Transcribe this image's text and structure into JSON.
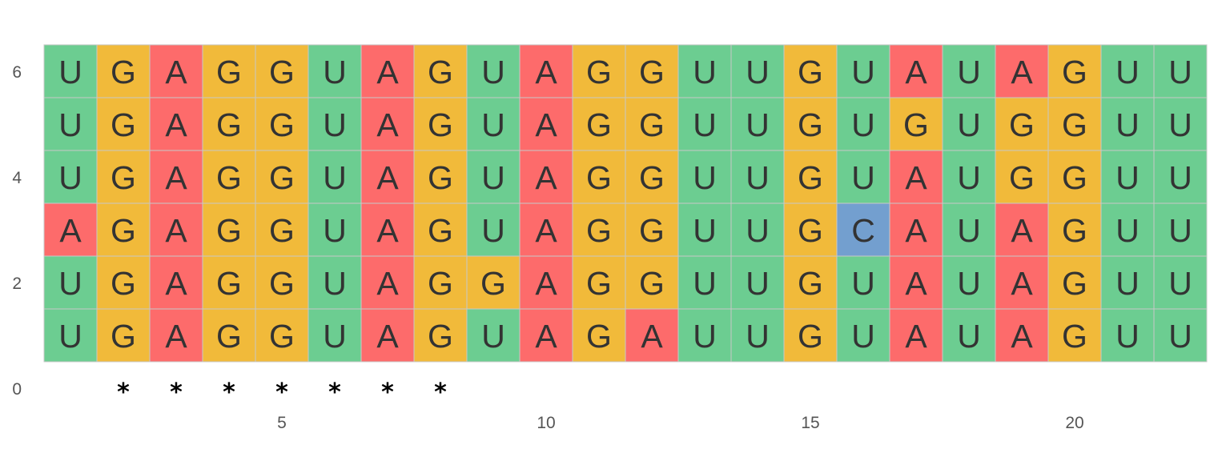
{
  "chart_data": {
    "type": "heatmap",
    "title": "",
    "xlabel": "",
    "ylabel": "",
    "xlim": [
      0.5,
      22.5
    ],
    "ylim": [
      0,
      6.5
    ],
    "x_ticks": [
      5,
      10,
      15,
      20
    ],
    "y_ticks": [
      0,
      2,
      4,
      6
    ],
    "grid": false,
    "rows": [
      {
        "y": 6,
        "sequence": [
          "U",
          "G",
          "A",
          "G",
          "G",
          "U",
          "A",
          "G",
          "U",
          "A",
          "G",
          "G",
          "U",
          "U",
          "G",
          "U",
          "A",
          "U",
          "A",
          "G",
          "U",
          "U"
        ]
      },
      {
        "y": 5,
        "sequence": [
          "U",
          "G",
          "A",
          "G",
          "G",
          "U",
          "A",
          "G",
          "U",
          "A",
          "G",
          "G",
          "U",
          "U",
          "G",
          "U",
          "G",
          "U",
          "G",
          "G",
          "U",
          "U"
        ]
      },
      {
        "y": 4,
        "sequence": [
          "U",
          "G",
          "A",
          "G",
          "G",
          "U",
          "A",
          "G",
          "U",
          "A",
          "G",
          "G",
          "U",
          "U",
          "G",
          "U",
          "A",
          "U",
          "G",
          "G",
          "U",
          "U"
        ]
      },
      {
        "y": 3,
        "sequence": [
          "A",
          "G",
          "A",
          "G",
          "G",
          "U",
          "A",
          "G",
          "U",
          "A",
          "G",
          "G",
          "U",
          "U",
          "G",
          "C",
          "A",
          "U",
          "A",
          "G",
          "U",
          "U"
        ]
      },
      {
        "y": 2,
        "sequence": [
          "U",
          "G",
          "A",
          "G",
          "G",
          "U",
          "A",
          "G",
          "G",
          "A",
          "G",
          "G",
          "U",
          "U",
          "G",
          "U",
          "A",
          "U",
          "A",
          "G",
          "U",
          "U"
        ]
      },
      {
        "y": 1,
        "sequence": [
          "U",
          "G",
          "A",
          "G",
          "G",
          "U",
          "A",
          "G",
          "U",
          "A",
          "G",
          "A",
          "U",
          "U",
          "G",
          "U",
          "A",
          "U",
          "A",
          "G",
          "U",
          "U"
        ]
      }
    ],
    "conserved_marker": "*",
    "conserved_positions": [
      2,
      3,
      4,
      5,
      6,
      7,
      8
    ],
    "colors": {
      "A": "#fd6b6b",
      "G": "#f1ba3a",
      "U": "#6ccd91",
      "C": "#739fcf"
    }
  }
}
